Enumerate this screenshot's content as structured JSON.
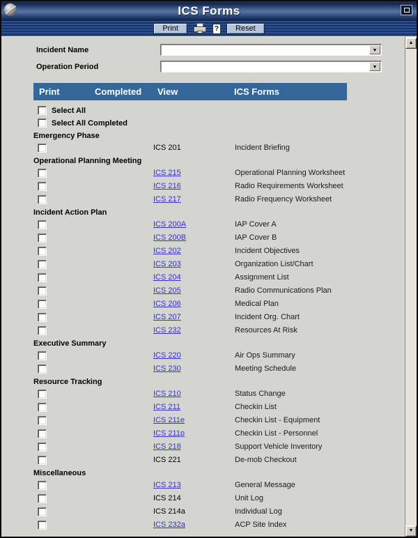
{
  "window": {
    "title": "ICS Forms"
  },
  "toolbar": {
    "print_label": "Print",
    "reset_label": "Reset"
  },
  "icons": {
    "app_logo": "pen-globe-logo",
    "maximize": "maximize-window",
    "printer": "printer-glyph",
    "help": "?",
    "dropdown_arrow": "▼",
    "scroll_up": "▲",
    "scroll_down": "▼"
  },
  "form": {
    "incident_name_label": "Incident Name",
    "incident_name_value": "",
    "operation_period_label": "Operation Period",
    "operation_period_value": ""
  },
  "table": {
    "headers": [
      "Print",
      "Completed",
      "View",
      "ICS Forms"
    ],
    "select_all_label": "Select All",
    "select_all_completed_label": "Select All Completed",
    "sections": [
      {
        "name": "Emergency Phase",
        "rows": [
          {
            "code": "ICS 201",
            "link": false,
            "desc": "Incident Briefing"
          }
        ]
      },
      {
        "name": "Operational Planning Meeting",
        "rows": [
          {
            "code": "ICS 215",
            "link": true,
            "desc": "Operational Planning Worksheet"
          },
          {
            "code": "ICS 216",
            "link": true,
            "desc": "Radio Requirements Worksheet"
          },
          {
            "code": "ICS 217",
            "link": true,
            "desc": "Radio Frequency Worksheet"
          }
        ]
      },
      {
        "name": "Incident Action Plan",
        "rows": [
          {
            "code": "ICS 200A",
            "link": true,
            "desc": "IAP Cover A"
          },
          {
            "code": "ICS 200B",
            "link": true,
            "desc": "IAP Cover B"
          },
          {
            "code": "ICS 202",
            "link": true,
            "desc": "Incident Objectives"
          },
          {
            "code": "ICS 203",
            "link": true,
            "desc": "Organization List/Chart"
          },
          {
            "code": "ICS 204",
            "link": true,
            "desc": "Assignment List"
          },
          {
            "code": "ICS 205",
            "link": true,
            "desc": "Radio Communications Plan"
          },
          {
            "code": "ICS 206",
            "link": true,
            "desc": "Medical Plan"
          },
          {
            "code": "ICS 207",
            "link": true,
            "desc": "Incident Org. Chart"
          },
          {
            "code": "ICS 232",
            "link": true,
            "desc": "Resources At Risk"
          }
        ]
      },
      {
        "name": "Executive Summary",
        "rows": [
          {
            "code": "ICS 220",
            "link": true,
            "desc": "Air Ops Summary"
          },
          {
            "code": "ICS 230",
            "link": true,
            "desc": "Meeting Schedule"
          }
        ]
      },
      {
        "name": "Resource Tracking",
        "rows": [
          {
            "code": "ICS 210",
            "link": true,
            "desc": "Status Change"
          },
          {
            "code": "ICS 211",
            "link": true,
            "desc": "Checkin List"
          },
          {
            "code": "ICS 211e",
            "link": true,
            "desc": "Checkin List - Equipment"
          },
          {
            "code": "ICS 211p",
            "link": true,
            "desc": "Checkin List - Personnel"
          },
          {
            "code": "ICS 218",
            "link": true,
            "desc": "Support Vehicle Inventory"
          },
          {
            "code": "ICS 221",
            "link": false,
            "desc": "De-mob Checkout"
          }
        ]
      },
      {
        "name": "Miscellaneous",
        "rows": [
          {
            "code": "ICS 213",
            "link": true,
            "desc": "General Message"
          },
          {
            "code": "ICS 214",
            "link": false,
            "desc": "Unit Log"
          },
          {
            "code": "ICS 214a",
            "link": false,
            "desc": "Individual Log"
          },
          {
            "code": "ICS 232a",
            "link": true,
            "desc": "ACP Site Index"
          }
        ]
      }
    ]
  },
  "colors": {
    "header_bar": "#336699",
    "link": "#3333cc",
    "titlebar_mid": "#54719f",
    "titlebar_dark": "#101f44",
    "toolbar_stripe_light": "#2d5190",
    "toolbar_stripe_dark": "#17346a",
    "content_bg": "#d4d4d0",
    "button_face": "#b7c5da"
  }
}
